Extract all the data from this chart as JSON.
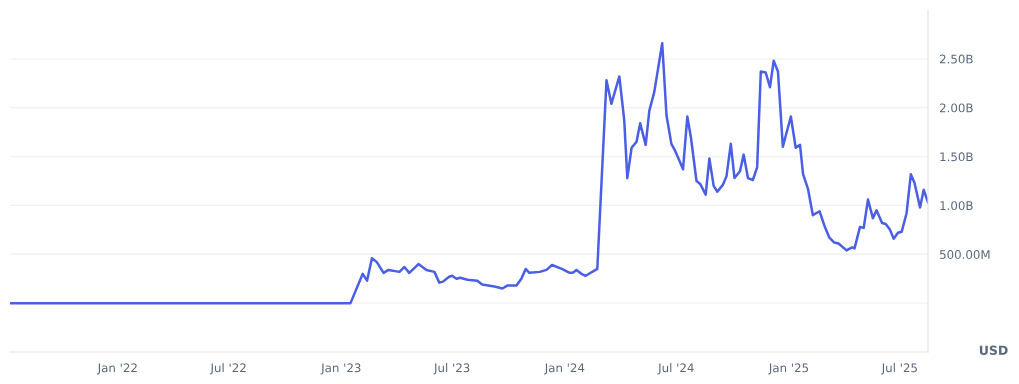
{
  "chart_data": {
    "type": "line",
    "x": [
      "2021-07-10",
      "2023-01-16",
      "2023-02-05",
      "2023-02-12",
      "2023-02-20",
      "2023-02-28",
      "2023-03-11",
      "2023-03-19",
      "2023-04-06",
      "2023-04-14",
      "2023-04-22",
      "2023-05-07",
      "2023-05-20",
      "2023-06-02",
      "2023-06-10",
      "2023-06-16",
      "2023-06-26",
      "2023-07-01",
      "2023-07-08",
      "2023-07-14",
      "2023-07-26",
      "2023-08-11",
      "2023-08-19",
      "2023-09-08",
      "2023-09-21",
      "2023-09-29",
      "2023-10-14",
      "2023-10-22",
      "2023-10-29",
      "2023-11-04",
      "2023-11-21",
      "2023-12-02",
      "2023-12-11",
      "2023-12-27",
      "2024-01-09",
      "2024-01-14",
      "2024-01-20",
      "2024-01-28",
      "2024-02-04",
      "2024-02-23",
      "2024-03-09",
      "2024-03-17",
      "2024-03-30",
      "2024-04-07",
      "2024-04-12",
      "2024-04-19",
      "2024-04-27",
      "2024-05-03",
      "2024-05-12",
      "2024-05-18",
      "2024-05-26",
      "2024-06-08",
      "2024-06-15",
      "2024-06-23",
      "2024-06-29",
      "2024-07-06",
      "2024-07-12",
      "2024-07-19",
      "2024-07-25",
      "2024-08-03",
      "2024-08-09",
      "2024-08-18",
      "2024-08-24",
      "2024-08-31",
      "2024-09-06",
      "2024-09-15",
      "2024-09-21",
      "2024-09-28",
      "2024-10-04",
      "2024-10-13",
      "2024-10-19",
      "2024-10-26",
      "2024-11-03",
      "2024-11-10",
      "2024-11-16",
      "2024-11-24",
      "2024-12-01",
      "2024-12-07",
      "2024-12-14",
      "2024-12-22",
      "2025-01-04",
      "2025-01-12",
      "2025-01-19",
      "2025-01-24",
      "2025-02-01",
      "2025-02-09",
      "2025-02-20",
      "2025-02-28",
      "2025-03-08",
      "2025-03-16",
      "2025-03-23",
      "2025-04-05",
      "2025-04-14",
      "2025-04-18",
      "2025-04-27",
      "2025-05-03",
      "2025-05-10",
      "2025-05-18",
      "2025-05-24",
      "2025-06-02",
      "2025-06-08",
      "2025-06-15",
      "2025-06-21",
      "2025-06-28",
      "2025-07-04",
      "2025-07-12",
      "2025-07-19",
      "2025-07-25",
      "2025-08-03",
      "2025-08-09",
      "2025-08-16"
    ],
    "series": [
      {
        "color": "#4a5fe5",
        "values": [
          0,
          0,
          300000000,
          230000000,
          460000000,
          420000000,
          310000000,
          340000000,
          320000000,
          370000000,
          310000000,
          400000000,
          340000000,
          320000000,
          210000000,
          220000000,
          270000000,
          280000000,
          250000000,
          260000000,
          240000000,
          230000000,
          190000000,
          170000000,
          150000000,
          180000000,
          180000000,
          250000000,
          350000000,
          310000000,
          320000000,
          340000000,
          390000000,
          350000000,
          310000000,
          310000000,
          340000000,
          300000000,
          280000000,
          350000000,
          2280000000,
          2040000000,
          2320000000,
          1870000000,
          1280000000,
          1590000000,
          1650000000,
          1840000000,
          1620000000,
          1970000000,
          2160000000,
          2660000000,
          1920000000,
          1630000000,
          1560000000,
          1460000000,
          1370000000,
          1910000000,
          1690000000,
          1250000000,
          1220000000,
          1110000000,
          1480000000,
          1200000000,
          1140000000,
          1210000000,
          1300000000,
          1630000000,
          1280000000,
          1350000000,
          1520000000,
          1280000000,
          1260000000,
          1390000000,
          2370000000,
          2360000000,
          2210000000,
          2480000000,
          2370000000,
          1600000000,
          1910000000,
          1590000000,
          1620000000,
          1320000000,
          1170000000,
          900000000,
          940000000,
          790000000,
          670000000,
          620000000,
          610000000,
          540000000,
          570000000,
          560000000,
          780000000,
          770000000,
          1060000000,
          870000000,
          950000000,
          820000000,
          810000000,
          750000000,
          660000000,
          720000000,
          730000000,
          920000000,
          1320000000,
          1230000000,
          980000000,
          1160000000,
          1030000000
        ]
      }
    ],
    "xlim": [
      "2021-07-09",
      "2025-08-16"
    ],
    "xticks": [
      {
        "value": "2022-01-01",
        "label": "Jan '22"
      },
      {
        "value": "2022-07-01",
        "label": "Jul '22"
      },
      {
        "value": "2023-01-01",
        "label": "Jan '23"
      },
      {
        "value": "2023-07-01",
        "label": "Jul '23"
      },
      {
        "value": "2024-01-01",
        "label": "Jan '24"
      },
      {
        "value": "2024-07-01",
        "label": "Jul '24"
      },
      {
        "value": "2025-01-01",
        "label": "Jan '25"
      },
      {
        "value": "2025-07-01",
        "label": "Jul '25"
      }
    ],
    "ylim": [
      -500000000,
      3000000000
    ],
    "yticks": [
      {
        "value": 0,
        "label": null
      },
      {
        "value": 500000000,
        "label": "500.00M"
      },
      {
        "value": 1000000000,
        "label": "1.00B"
      },
      {
        "value": 1500000000,
        "label": "1.50B"
      },
      {
        "value": 2000000000,
        "label": "2.00B"
      },
      {
        "value": 2500000000,
        "label": "2.50B"
      }
    ],
    "grid": "y",
    "annotations": [
      "USD"
    ]
  }
}
